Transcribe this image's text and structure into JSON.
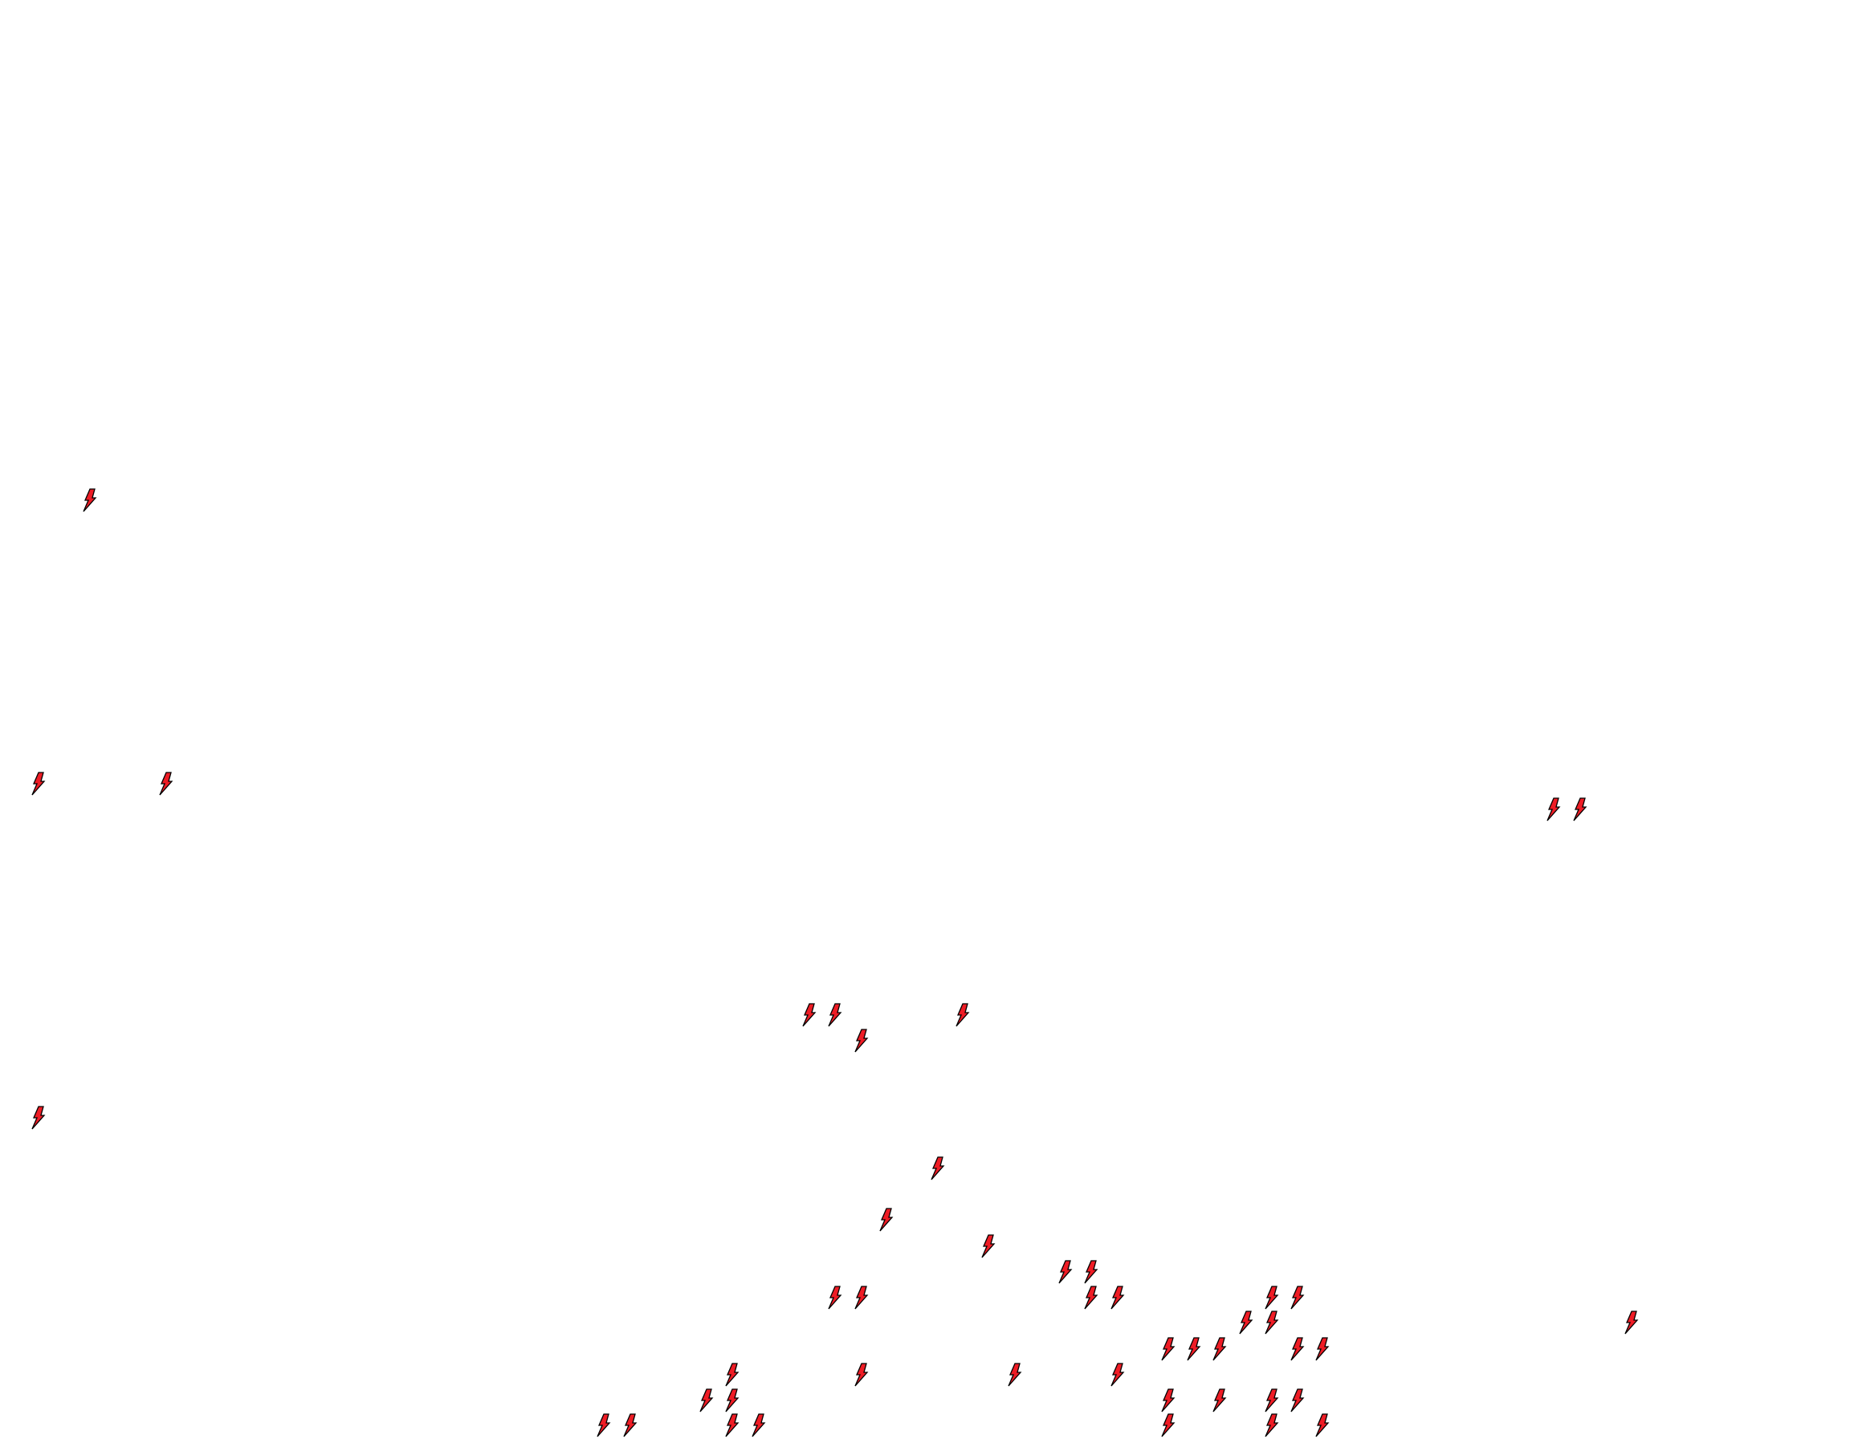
{
  "map": {
    "background_color": "#ffffff",
    "marker_icon": "lightning-bolt-icon",
    "marker_fill_color": "#ee1c25",
    "marker_stroke_color": "#000000",
    "marker_count": 47
  }
}
